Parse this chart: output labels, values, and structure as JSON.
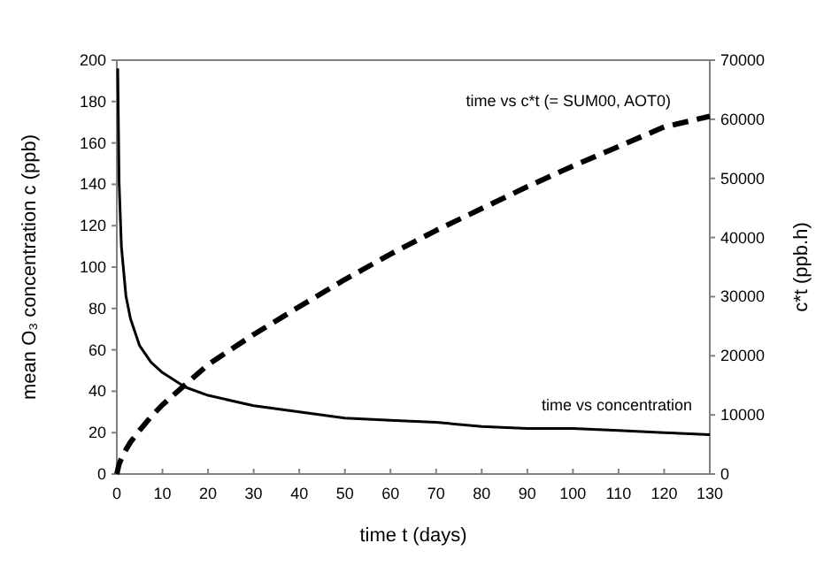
{
  "chart_data": {
    "type": "line",
    "xlabel": "time t (days)",
    "ylabel": "mean O₃ concentration c (ppb)",
    "y2label": "c*t (ppb.h)",
    "xlim": [
      0,
      130
    ],
    "xticks": [
      0,
      10,
      20,
      30,
      40,
      50,
      60,
      70,
      80,
      90,
      100,
      110,
      120,
      130
    ],
    "ylim": [
      0,
      200
    ],
    "yticks": [
      0,
      20,
      40,
      60,
      80,
      100,
      120,
      140,
      160,
      180,
      200
    ],
    "y2lim": [
      0,
      70000
    ],
    "y2ticks": [
      0,
      10000,
      20000,
      30000,
      40000,
      50000,
      60000,
      70000
    ],
    "grid": false,
    "marker": "none",
    "series": [
      {
        "name": "time vs concentration",
        "color": "#000000",
        "line_style": "solid",
        "x": [
          0.2,
          0.5,
          1,
          2,
          3,
          5,
          7.5,
          10,
          15,
          20,
          30,
          40,
          50,
          60,
          70,
          80,
          90,
          100,
          110,
          120,
          130
        ],
        "values": [
          196,
          141,
          110,
          86,
          75,
          62,
          54,
          49,
          42,
          38,
          33,
          30,
          27,
          26,
          25,
          23,
          22,
          22,
          21,
          20,
          19
        ]
      },
      {
        "name": "time vs c*t (= SUM00, AOT0)",
        "color": "#000000",
        "line_style": "dashed",
        "axis": "y2",
        "x": [
          0,
          0.5,
          1,
          2,
          3,
          5,
          7.5,
          10,
          15,
          20,
          30,
          40,
          50,
          60,
          70,
          80,
          90,
          100,
          110,
          120,
          130
        ],
        "values": [
          0,
          1700,
          2600,
          4100,
          5400,
          7400,
          9700,
          11700,
          15100,
          18500,
          23600,
          28300,
          32900,
          37200,
          41200,
          44900,
          48600,
          52100,
          55400,
          58700,
          60500
        ]
      }
    ]
  }
}
